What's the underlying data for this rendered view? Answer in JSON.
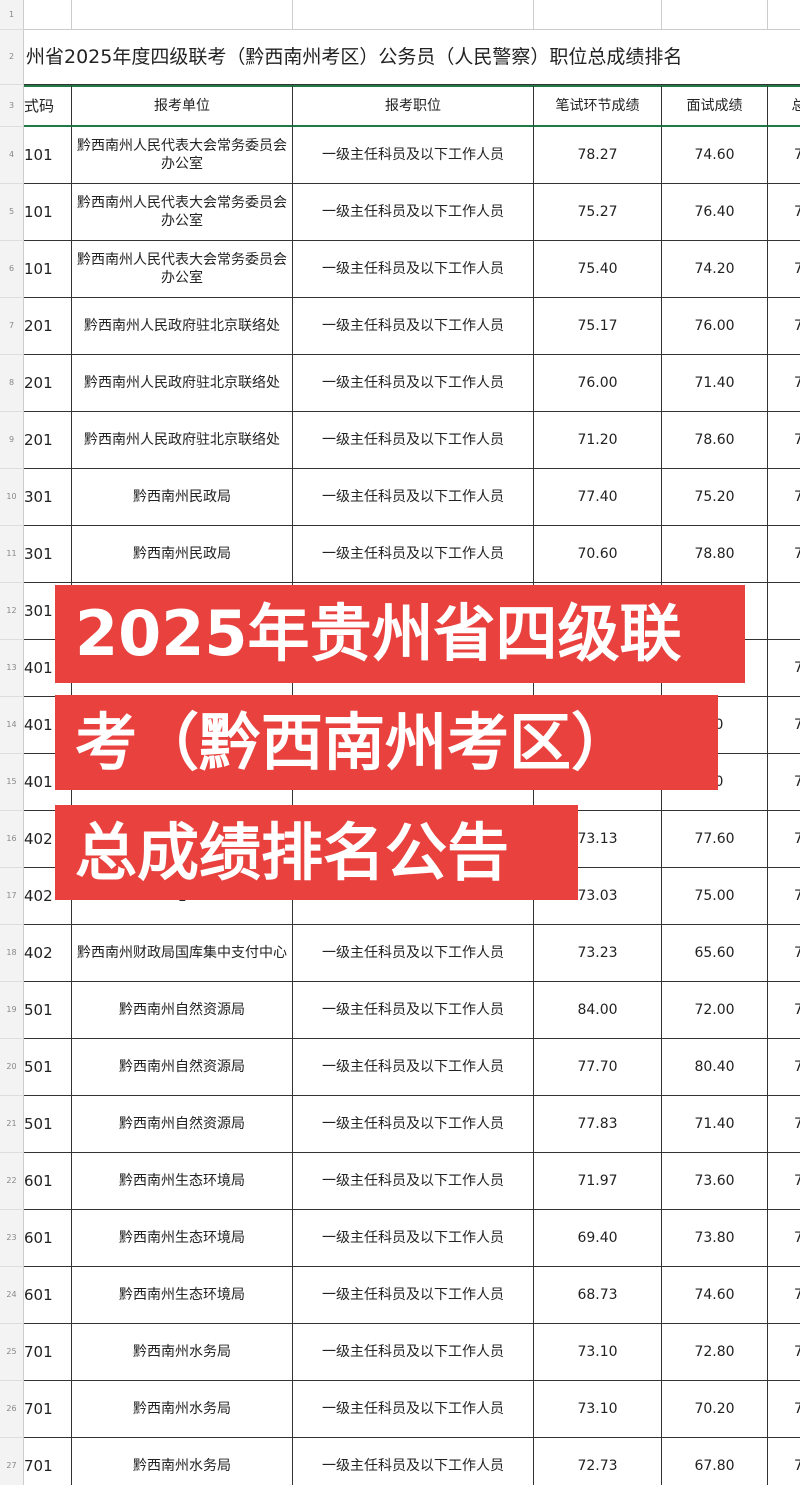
{
  "sheet": {
    "row_numbers": [
      "1",
      "2",
      "3",
      "4",
      "5",
      "6",
      "7",
      "8",
      "9",
      "10",
      "11",
      "12",
      "13",
      "14",
      "15",
      "16",
      "17",
      "18",
      "19",
      "20",
      "21",
      "22",
      "23",
      "24",
      "25",
      "26",
      "27"
    ],
    "title": "州省2025年度四级联考（黔西南州考区）公务员（人民警察）职位总成绩排名",
    "header": [
      "式码",
      "报考单位",
      "报考职位",
      "笔试环节成绩",
      "面试成绩",
      "总"
    ],
    "rows": [
      [
        "101",
        "黔西南州人民代表大会常务委员会办公室",
        "一级主任科员及以下工作人员",
        "78.27",
        "74.60",
        "7"
      ],
      [
        "101",
        "黔西南州人民代表大会常务委员会办公室",
        "一级主任科员及以下工作人员",
        "75.27",
        "76.40",
        "7"
      ],
      [
        "101",
        "黔西南州人民代表大会常务委员会办公室",
        "一级主任科员及以下工作人员",
        "75.40",
        "74.20",
        "7"
      ],
      [
        "201",
        "黔西南州人民政府驻北京联络处",
        "一级主任科员及以下工作人员",
        "75.17",
        "76.00",
        "7"
      ],
      [
        "201",
        "黔西南州人民政府驻北京联络处",
        "一级主任科员及以下工作人员",
        "76.00",
        "71.40",
        "7"
      ],
      [
        "201",
        "黔西南州人民政府驻北京联络处",
        "一级主任科员及以下工作人员",
        "71.20",
        "78.60",
        "7"
      ],
      [
        "301",
        "黔西南州民政局",
        "一级主任科员及以下工作人员",
        "77.40",
        "75.20",
        "7"
      ],
      [
        "301",
        "黔西南州民政局",
        "一级主任科员及以下工作人员",
        "70.60",
        "78.80",
        "7"
      ],
      [
        "301",
        null,
        null,
        null,
        null,
        null
      ],
      [
        "401",
        null,
        null,
        null,
        null,
        "7"
      ],
      [
        "401",
        null,
        null,
        null,
        "60",
        "7"
      ],
      [
        "401",
        "心",
        null,
        null,
        "00",
        "7"
      ],
      [
        "402",
        null,
        null,
        "73.13",
        "77.60",
        "7"
      ],
      [
        "402",
        "心",
        null,
        "73.03",
        "75.00",
        "7"
      ],
      [
        "402",
        "黔西南州财政局国库集中支付中心",
        "一级主任科员及以下工作人员",
        "73.23",
        "65.60",
        "7"
      ],
      [
        "501",
        "黔西南州自然资源局",
        "一级主任科员及以下工作人员",
        "84.00",
        "72.00",
        "7"
      ],
      [
        "501",
        "黔西南州自然资源局",
        "一级主任科员及以下工作人员",
        "77.70",
        "80.40",
        "7"
      ],
      [
        "501",
        "黔西南州自然资源局",
        "一级主任科员及以下工作人员",
        "77.83",
        "71.40",
        "7"
      ],
      [
        "601",
        "黔西南州生态环境局",
        "一级主任科员及以下工作人员",
        "71.97",
        "73.60",
        "7"
      ],
      [
        "601",
        "黔西南州生态环境局",
        "一级主任科员及以下工作人员",
        "69.40",
        "73.80",
        "7"
      ],
      [
        "601",
        "黔西南州生态环境局",
        "一级主任科员及以下工作人员",
        "68.73",
        "74.60",
        "7"
      ],
      [
        "701",
        "黔西南州水务局",
        "一级主任科员及以下工作人员",
        "73.10",
        "72.80",
        "7"
      ],
      [
        "701",
        "黔西南州水务局",
        "一级主任科员及以下工作人员",
        "73.10",
        "70.20",
        "7"
      ],
      [
        "701",
        "黔西南州水务局",
        "一级主任科员及以下工作人员",
        "72.73",
        "67.80",
        "7"
      ]
    ]
  },
  "banner": {
    "lines": [
      "2025年贵州省四级联",
      "考（黔西南州考区）",
      "总成绩排名公告"
    ]
  }
}
